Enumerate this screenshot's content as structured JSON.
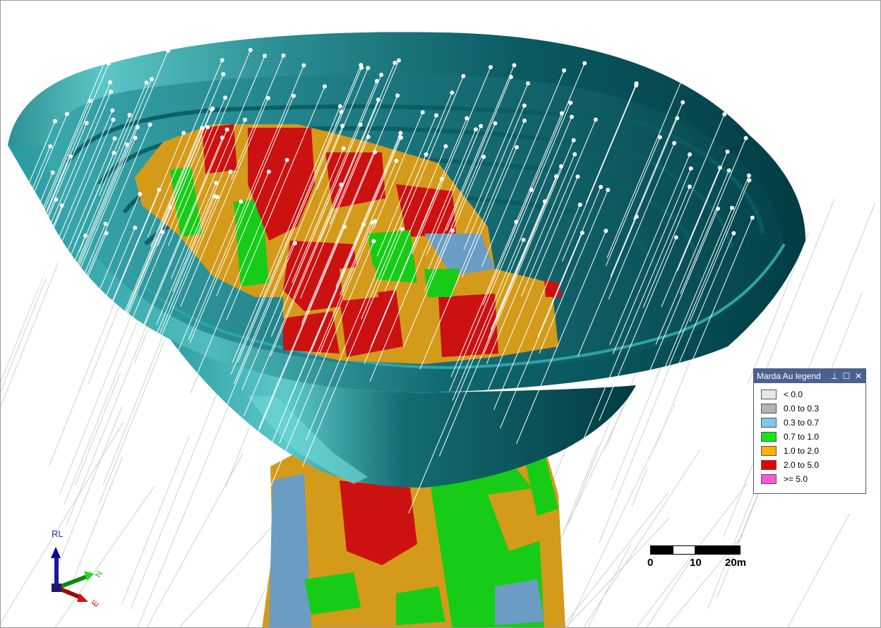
{
  "legend": {
    "title": "Marda Au legend",
    "buttons": {
      "pin": "⊥",
      "maximize": "☐",
      "close": "✕"
    },
    "items": [
      {
        "label": "< 0.0",
        "color": "#e6e6e6"
      },
      {
        "label": "0.0 to 0.3",
        "color": "#b4b4b4"
      },
      {
        "label": "0.3 to 0.7",
        "color": "#7fc7f0"
      },
      {
        "label": "0.7 to 1.0",
        "color": "#16e616"
      },
      {
        "label": "1.0 to 2.0",
        "color": "#ffb300"
      },
      {
        "label": "2.0 to 5.0",
        "color": "#e60000"
      },
      {
        "label": ">= 5.0",
        "color": "#ff55d4"
      }
    ]
  },
  "scale": {
    "labels": [
      "0",
      "10",
      "20m"
    ]
  },
  "axes": {
    "up": "RL",
    "north": "N",
    "east": "E"
  },
  "colors": {
    "pit_light": "#5cc7c7",
    "pit_dark": "#013b42",
    "drillhole": "#ffffff",
    "block_green": "#16cc16",
    "block_orange": "#d49a1a",
    "block_red": "#cc1111",
    "block_blue": "#6a9cc4"
  }
}
